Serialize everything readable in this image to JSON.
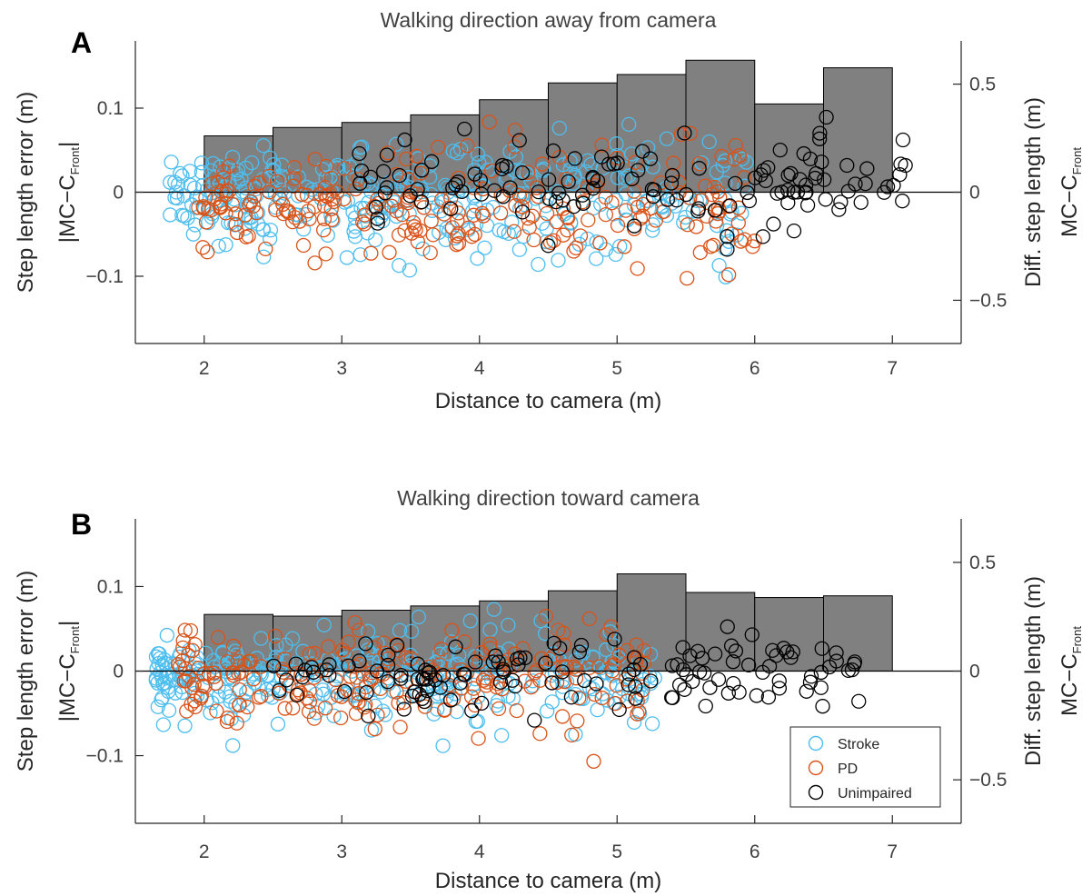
{
  "colors": {
    "stroke": "#4DBEEE",
    "pd": "#D95319",
    "unimpaired": "#000000",
    "bar": "#808080"
  },
  "chart_data": [
    {
      "panel": "A",
      "type": "bar+scatter",
      "title": "Walking direction away from camera",
      "xlabel": "Distance to camera (m)",
      "ylabel": {
        "line1": "Step length error (m)",
        "line2_main": "|MC−C",
        "line2_sub": "Front",
        "line2_end": "|"
      },
      "ylabel_right": {
        "line1": "Diff. step length (m)",
        "line2_main": "MC−C",
        "line2_sub": "Front"
      },
      "xlim": [
        1.5,
        7.5
      ],
      "ylim_left": [
        -0.18,
        0.18
      ],
      "ylim_right": [
        -0.7,
        0.7
      ],
      "xticks": [
        "2",
        "3",
        "4",
        "5",
        "6",
        "7"
      ],
      "yticks_left": [
        "−0.1",
        "0",
        "0.1"
      ],
      "yticks_right": [
        "−0.5",
        "0",
        "0.5"
      ],
      "bars": {
        "edges": [
          2.0,
          2.5,
          3.0,
          3.5,
          4.0,
          4.5,
          5.0,
          5.5,
          6.0,
          6.5,
          7.0
        ],
        "values": [
          0.067,
          0.077,
          0.083,
          0.092,
          0.11,
          0.13,
          0.14,
          0.157,
          0.105,
          0.148
        ]
      },
      "series": [
        {
          "name": "Stroke",
          "color": "#4DBEEE",
          "x_range": [
            1.75,
            5.95
          ],
          "y_mean": -0.008,
          "y_sd": 0.033,
          "n": 330
        },
        {
          "name": "PD",
          "color": "#D95319",
          "x_range": [
            1.95,
            6.0
          ],
          "y_mean": -0.015,
          "y_sd": 0.032,
          "n": 240
        },
        {
          "name": "Unimpaired",
          "color": "#000000",
          "x_range": [
            3.1,
            7.15
          ],
          "y_mean": 0.01,
          "y_sd": 0.03,
          "n": 130
        }
      ]
    },
    {
      "panel": "B",
      "type": "bar+scatter",
      "title": "Walking direction toward camera",
      "xlabel": "Distance to camera (m)",
      "ylabel": {
        "line1": "Step length error (m)",
        "line2_main": "|MC−C",
        "line2_sub": "Front",
        "line2_end": "|"
      },
      "ylabel_right": {
        "line1": "Diff. step length (m)",
        "line2_main": "MC−C",
        "line2_sub": "Front"
      },
      "xlim": [
        1.5,
        7.5
      ],
      "ylim_left": [
        -0.18,
        0.18
      ],
      "ylim_right": [
        -0.7,
        0.7
      ],
      "xticks": [
        "2",
        "3",
        "4",
        "5",
        "6",
        "7"
      ],
      "yticks_left": [
        "−0.1",
        "0",
        "0.1"
      ],
      "yticks_right": [
        "−0.5",
        "0",
        "0.5"
      ],
      "bars": {
        "edges": [
          2.0,
          2.5,
          3.0,
          3.5,
          4.0,
          4.5,
          5.0,
          5.5,
          6.0,
          6.5,
          7.0
        ],
        "values": [
          0.067,
          0.065,
          0.072,
          0.077,
          0.083,
          0.095,
          0.115,
          0.093,
          0.087,
          0.089
        ]
      },
      "series": [
        {
          "name": "Stroke",
          "color": "#4DBEEE",
          "x_range": [
            1.65,
            5.3
          ],
          "y_mean": -0.005,
          "y_sd": 0.03,
          "n": 320
        },
        {
          "name": "PD",
          "color": "#D95319",
          "x_range": [
            1.8,
            5.2
          ],
          "y_mean": -0.008,
          "y_sd": 0.028,
          "n": 220
        },
        {
          "name": "Unimpaired",
          "color": "#000000",
          "x_range": [
            2.5,
            6.8
          ],
          "y_mean": 0.0,
          "y_sd": 0.025,
          "n": 140
        }
      ],
      "legend": {
        "placement": "bottom-right",
        "entries": [
          "Stroke",
          "PD",
          "Unimpaired"
        ]
      }
    }
  ]
}
